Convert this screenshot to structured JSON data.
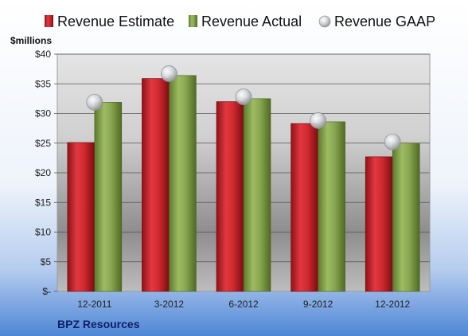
{
  "colors": {
    "estimate": "#c8232b",
    "actual": "#7f9c46",
    "gaap": "#b9bcc1",
    "footer_text": "#0d1f66"
  },
  "company": "BPZ Resources",
  "chart_data": {
    "type": "bar",
    "ylabel": "$millions",
    "ylim": [
      0,
      40
    ],
    "y_ticks": [
      "$-",
      "$5",
      "$10",
      "$15",
      "$20",
      "$25",
      "$30",
      "$35",
      "$40"
    ],
    "y_tick_values": [
      0,
      5,
      10,
      15,
      20,
      25,
      30,
      35,
      40
    ],
    "categories": [
      "12-2011",
      "3-2012",
      "6-2012",
      "9-2012",
      "12-2012"
    ],
    "legend_position": "top",
    "grid": true,
    "series": [
      {
        "name": "Revenue Estimate",
        "type": "bar",
        "values": [
          25.1,
          35.9,
          32.0,
          28.3,
          22.7
        ]
      },
      {
        "name": "Revenue Actual",
        "type": "bar",
        "values": [
          31.9,
          36.4,
          32.5,
          28.6,
          25.0
        ]
      },
      {
        "name": "Revenue GAAP",
        "type": "marker",
        "values": [
          31.9,
          36.7,
          32.8,
          28.8,
          25.2
        ]
      }
    ]
  }
}
